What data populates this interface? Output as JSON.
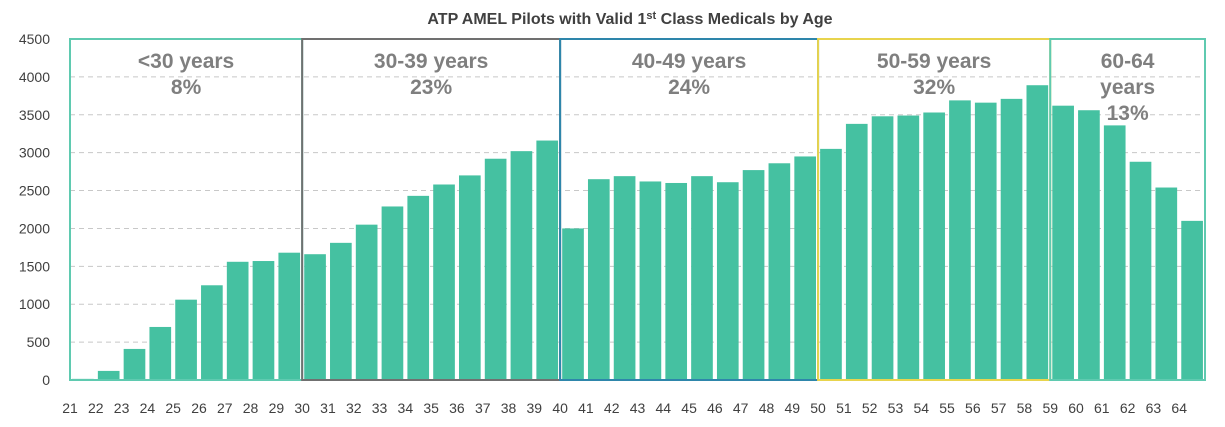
{
  "chart_data": {
    "type": "bar",
    "title_main": "ATP AMEL Pilots with Valid 1",
    "title_sup": "st",
    "title_rest": " Class Medicals by Age",
    "yticks": [
      "0",
      "500",
      "1000",
      "1500",
      "2000",
      "2500",
      "3000",
      "3500",
      "4000",
      "4500"
    ],
    "ylim": [
      0,
      4500
    ],
    "grid": true,
    "bar_color": "#45c1a1",
    "x_labels": [
      "21",
      "22",
      "23",
      "24",
      "25",
      "26",
      "27",
      "28",
      "29",
      "30",
      "31",
      "32",
      "33",
      "34",
      "35",
      "36",
      "37",
      "38",
      "39",
      "40",
      "41",
      "42",
      "43",
      "44",
      "45",
      "46",
      "47",
      "48",
      "49",
      "50",
      "51",
      "52",
      "53",
      "54",
      "55",
      "56",
      "57",
      "58",
      "59",
      "60",
      "61",
      "62",
      "63",
      "64"
    ],
    "categories": [
      "21",
      "22",
      "23",
      "24",
      "25",
      "26",
      "27",
      "28",
      "29",
      "30",
      "31",
      "32",
      "33",
      "34",
      "35",
      "36",
      "37",
      "38",
      "39",
      "40",
      "41",
      "42",
      "43",
      "44",
      "45",
      "46",
      "47",
      "48",
      "49",
      "50",
      "51",
      "52",
      "53",
      "54",
      "55",
      "56",
      "57",
      "58",
      "59",
      "60",
      "61",
      "62",
      "63",
      "64"
    ],
    "values": [
      15,
      120,
      410,
      700,
      1060,
      1250,
      1560,
      1570,
      1680,
      1660,
      1810,
      2050,
      2290,
      2430,
      2580,
      2700,
      2920,
      3020,
      3160,
      2000,
      2650,
      2690,
      2620,
      2600,
      2690,
      2610,
      2770,
      2860,
      2950,
      3050,
      3380,
      3480,
      3490,
      3530,
      3690,
      3660,
      3710,
      3890,
      3620,
      3560,
      3360,
      2880,
      2540,
      2100
    ],
    "groups": [
      {
        "line1": "<30 years",
        "line2": "",
        "line3": "8%",
        "color": "#5fcab0"
      },
      {
        "line1": "30-39 years",
        "line2": "",
        "line3": "23%",
        "color": "#707070"
      },
      {
        "line1": "40-49 years",
        "line2": "",
        "line3": "24%",
        "color": "#2e86ab"
      },
      {
        "line1": "50-59 years",
        "line2": "",
        "line3": "32%",
        "color": "#e8d44d"
      },
      {
        "line1": "60-64",
        "line2": "years",
        "line3": "13%",
        "color": "#5fcab0"
      }
    ]
  }
}
